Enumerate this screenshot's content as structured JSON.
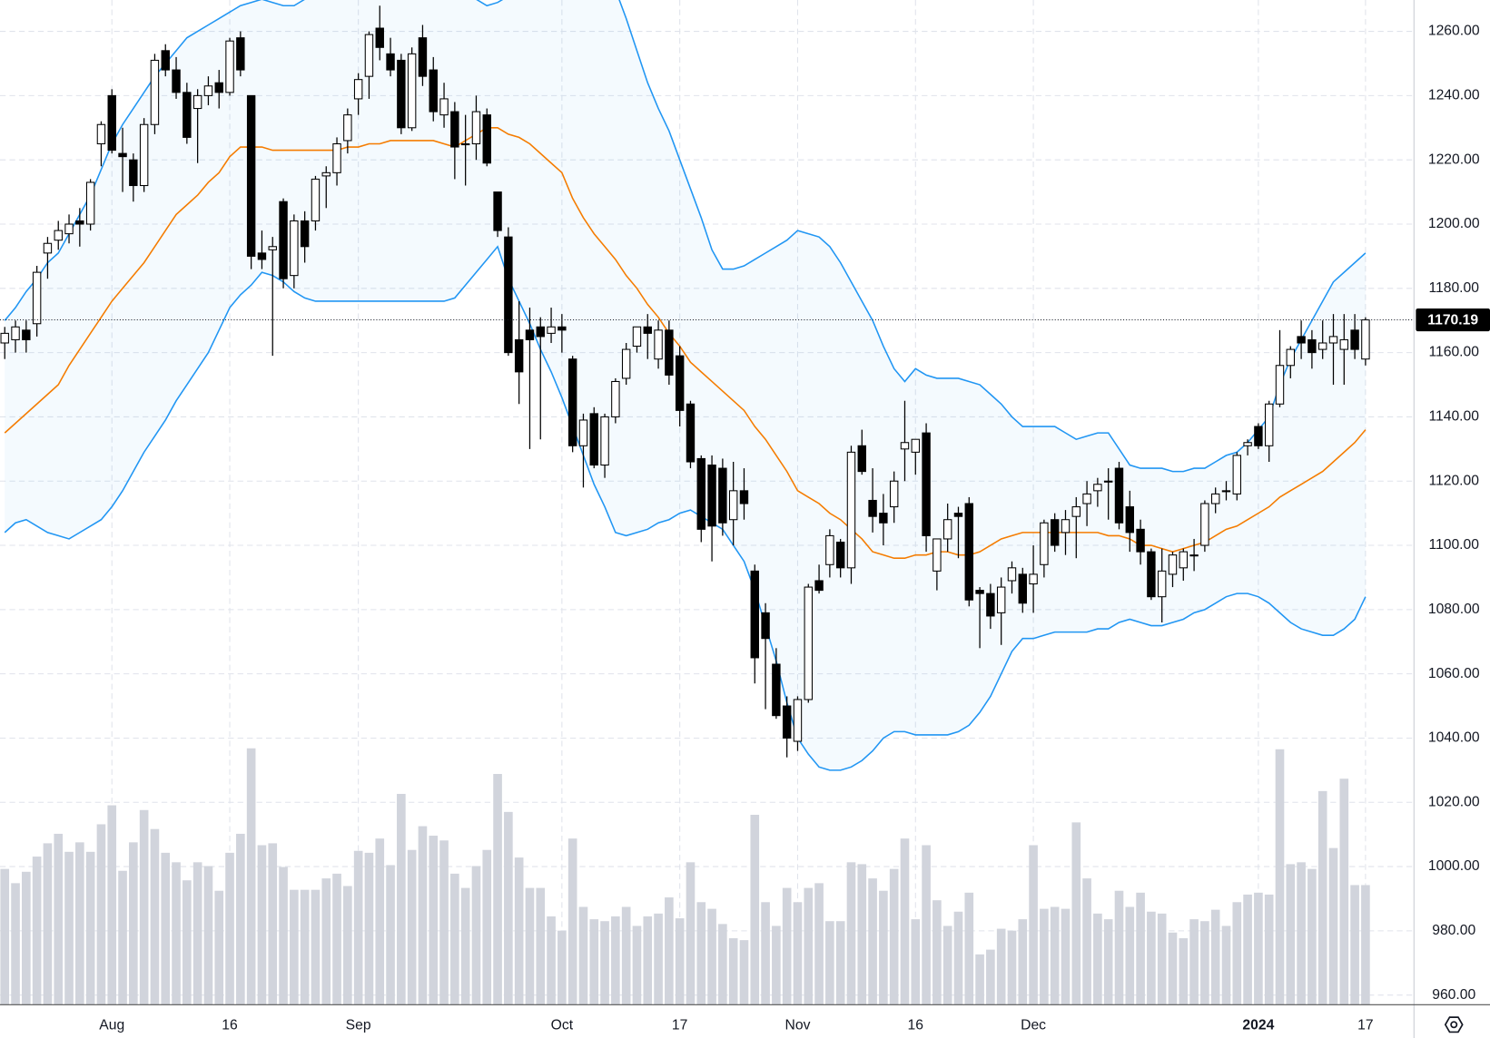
{
  "chart_data": {
    "type": "candlestick",
    "categories": [
      null,
      null,
      null,
      null,
      null,
      null,
      null,
      null,
      null,
      null,
      "Aug",
      null,
      null,
      null,
      null,
      null,
      null,
      null,
      null,
      null,
      null,
      "16",
      null,
      null,
      null,
      null,
      null,
      null,
      null,
      null,
      null,
      null,
      null,
      "Sep",
      null,
      null,
      null,
      null,
      null,
      null,
      null,
      null,
      null,
      null,
      null,
      null,
      null,
      null,
      null,
      null,
      null,
      null,
      "Oct",
      null,
      null,
      null,
      null,
      null,
      null,
      null,
      null,
      null,
      null,
      "17",
      null,
      null,
      null,
      null,
      null,
      null,
      null,
      null,
      null,
      null,
      "Nov",
      null,
      null,
      null,
      null,
      null,
      null,
      null,
      null,
      null,
      null,
      "16",
      null,
      null,
      null,
      null,
      null,
      null,
      null,
      null,
      null,
      null,
      "Dec",
      null,
      null,
      null,
      null,
      null,
      null,
      null,
      null,
      null,
      null,
      null,
      null,
      null,
      null,
      null,
      null,
      null,
      null,
      null,
      null,
      "2024",
      null,
      null,
      null,
      null,
      null,
      null,
      null,
      null,
      null,
      "17"
    ],
    "open": [
      1163,
      1164,
      1167,
      1169,
      1191,
      1195,
      1197,
      1201,
      1200,
      1225,
      1240,
      1222,
      1220,
      1212,
      1231,
      1254,
      1248,
      1241,
      1236,
      1240,
      1244,
      1241,
      1258,
      1240,
      1191,
      1192,
      1207,
      1184,
      1201,
      1201,
      1215,
      1216,
      1226,
      1239,
      1246,
      1261,
      1253,
      1251,
      1230,
      1258,
      1248,
      1234,
      1235,
      1225,
      1225,
      1234,
      1210,
      1196,
      1164,
      1167,
      1168,
      1166,
      1168,
      1158,
      1131,
      1141,
      1125,
      1140,
      1152,
      1162,
      1168,
      1158,
      1167,
      1159,
      1144,
      1127,
      1125,
      1124,
      1108,
      1117,
      1092,
      1079,
      1063,
      1050,
      1039,
      1052,
      1089,
      1094,
      1101,
      1093,
      1131,
      1114,
      1110,
      1112,
      1130,
      1129,
      1135,
      1092,
      1102,
      1110,
      1113,
      1086,
      1085,
      1079,
      1089,
      1091,
      1088,
      1094,
      1108,
      1104,
      1109,
      1113,
      1117,
      1120,
      1124,
      1112,
      1105,
      1098,
      1084,
      1091,
      1093,
      1097,
      1100,
      1113,
      1117,
      1116,
      1131,
      1137,
      1131,
      1144,
      1156,
      1165,
      1164,
      1161,
      1163,
      1161,
      1167,
      1158
    ],
    "high": [
      1168,
      1170,
      1170,
      1187,
      1196,
      1201,
      1203,
      1205,
      1214,
      1232,
      1242,
      1230,
      1222,
      1233,
      1253,
      1256,
      1252,
      1244,
      1242,
      1246,
      1248,
      1258,
      1260,
      1240,
      1198,
      1196,
      1208,
      1203,
      1204,
      1215,
      1218,
      1227,
      1236,
      1247,
      1260,
      1268,
      1258,
      1253,
      1255,
      1262,
      1252,
      1244,
      1238,
      1234,
      1240,
      1236,
      1210,
      1199,
      1176,
      1174,
      1171,
      1174,
      1172,
      1159,
      1141,
      1143,
      1141,
      1152,
      1163,
      1168,
      1172,
      1170,
      1170,
      1162,
      1145,
      1128,
      1128,
      1127,
      1126,
      1124,
      1094,
      1082,
      1068,
      1053,
      1053,
      1088,
      1094,
      1105,
      1102,
      1131,
      1136,
      1124,
      1116,
      1123,
      1145,
      1133,
      1138,
      1102,
      1113,
      1112,
      1115,
      1087,
      1088,
      1090,
      1095,
      1093,
      1100,
      1108,
      1110,
      1111,
      1115,
      1120,
      1121,
      1124,
      1126,
      1117,
      1108,
      1099,
      1099,
      1098,
      1099,
      1102,
      1114,
      1118,
      1120,
      1129,
      1133,
      1138,
      1145,
      1167,
      1162,
      1170,
      1167,
      1170,
      1172,
      1172,
      1172,
      1171
    ],
    "low": [
      1158,
      1160,
      1160,
      1165,
      1183,
      1192,
      1194,
      1193,
      1198,
      1218,
      1222,
      1210,
      1207,
      1210,
      1228,
      1246,
      1239,
      1225,
      1219,
      1237,
      1236,
      1240,
      1246,
      1186,
      1186,
      1159,
      1180,
      1180,
      1188,
      1198,
      1205,
      1212,
      1222,
      1234,
      1239,
      1251,
      1246,
      1228,
      1229,
      1243,
      1232,
      1230,
      1214,
      1212,
      1220,
      1218,
      1196,
      1159,
      1144,
      1130,
      1133,
      1163,
      1160,
      1129,
      1118,
      1124,
      1121,
      1138,
      1150,
      1160,
      1158,
      1155,
      1150,
      1137,
      1124,
      1101,
      1095,
      1103,
      1100,
      1108,
      1057,
      1049,
      1046,
      1034,
      1036,
      1051,
      1085,
      1090,
      1090,
      1088,
      1122,
      1104,
      1100,
      1107,
      1120,
      1122,
      1098,
      1086,
      1098,
      1096,
      1081,
      1068,
      1074,
      1069,
      1085,
      1079,
      1079,
      1090,
      1098,
      1097,
      1096,
      1106,
      1112,
      1108,
      1105,
      1098,
      1094,
      1083,
      1076,
      1087,
      1089,
      1092,
      1098,
      1110,
      1114,
      1114,
      1128,
      1130,
      1126,
      1143,
      1152,
      1158,
      1155,
      1158,
      1150,
      1150,
      1158,
      1156
    ],
    "close": [
      1166,
      1168,
      1164,
      1185,
      1194,
      1198,
      1200,
      1200,
      1213,
      1231,
      1223,
      1221,
      1212,
      1231,
      1251,
      1248,
      1241,
      1227,
      1240,
      1243,
      1241,
      1257,
      1248,
      1190,
      1189,
      1193,
      1183,
      1201,
      1193,
      1214,
      1216,
      1225,
      1234,
      1245,
      1259,
      1255,
      1248,
      1230,
      1253,
      1246,
      1235,
      1239,
      1224,
      1225,
      1235,
      1219,
      1198,
      1160,
      1154,
      1164,
      1165,
      1168,
      1167,
      1131,
      1139,
      1125,
      1140,
      1151,
      1161,
      1168,
      1166,
      1167,
      1153,
      1142,
      1126,
      1105,
      1106,
      1107,
      1117,
      1113,
      1065,
      1071,
      1047,
      1040,
      1052,
      1087,
      1086,
      1103,
      1093,
      1129,
      1123,
      1109,
      1107,
      1120,
      1132,
      1133,
      1103,
      1102,
      1108,
      1109,
      1083,
      1085,
      1078,
      1087,
      1093,
      1082,
      1091,
      1107,
      1100,
      1108,
      1112,
      1116,
      1119,
      1120,
      1107,
      1104,
      1098,
      1084,
      1092,
      1097,
      1098,
      1097,
      1113,
      1116,
      1117,
      1128,
      1132,
      1131,
      1144,
      1156,
      1161,
      1163,
      1160,
      1163,
      1165,
      1164,
      1161,
      1170.19
    ],
    "volume": [
      143,
      128,
      140,
      156,
      170,
      180,
      161,
      171,
      161,
      190,
      210,
      141,
      171,
      205,
      185,
      160,
      150,
      131,
      150,
      146,
      120,
      160,
      180,
      270,
      168,
      170,
      145,
      121,
      121,
      121,
      133,
      138,
      125,
      162,
      160,
      175,
      147,
      222,
      163,
      188,
      178,
      173,
      138,
      123,
      146,
      163,
      243,
      203,
      155,
      123,
      123,
      93,
      78,
      175,
      103,
      90,
      88,
      93,
      103,
      83,
      93,
      96,
      113,
      91,
      150,
      108,
      101,
      85,
      70,
      68,
      200,
      108,
      83,
      123,
      108,
      123,
      128,
      88,
      88,
      150,
      148,
      133,
      120,
      143,
      175,
      90,
      168,
      110,
      83,
      98,
      118,
      53,
      58,
      80,
      78,
      90,
      168,
      101,
      103,
      101,
      192,
      133,
      96,
      90,
      120,
      103,
      118,
      98,
      96,
      76,
      70,
      90,
      88,
      100,
      83,
      108,
      116,
      118,
      116,
      269,
      148,
      150,
      143,
      225,
      165,
      238,
      126,
      126
    ],
    "volume_lim": [
      0,
      1058
    ],
    "volume_color": "#d1d4dc",
    "up_color": "#ffffff",
    "down_color": "#000000",
    "band_fill": "#2196f3",
    "overlays": [
      {
        "color": "#2196f3",
        "values": [
          1170,
          1174,
          1179,
          1183,
          1188,
          1191,
          1197,
          1203,
          1209,
          1217,
          1225,
          1231,
          1236,
          1241,
          1246,
          1250,
          1254,
          1258,
          1260,
          1262,
          1264,
          1266,
          1268,
          1269,
          1270,
          1269,
          1268,
          1268,
          1270,
          1271,
          1272,
          1273,
          1274,
          1275,
          1276,
          1278,
          1278,
          1277,
          1277,
          1276,
          1275,
          1274,
          1273,
          1271,
          1270,
          1268,
          1269,
          1271,
          1273,
          1275,
          1277,
          1279,
          1281,
          1284,
          1285,
          1282,
          1278,
          1273,
          1264,
          1254,
          1244,
          1236,
          1229,
          1220,
          1211,
          1202,
          1192,
          1186,
          1186,
          1187,
          1189,
          1191,
          1193,
          1195,
          1198,
          1197,
          1196,
          1193,
          1188,
          1182,
          1176,
          1170,
          1162,
          1155,
          1151,
          1155,
          1153,
          1152,
          1152,
          1152,
          1151,
          1150,
          1147,
          1144,
          1140,
          1137,
          1137,
          1137,
          1137,
          1135,
          1133,
          1134,
          1135,
          1135,
          1130,
          1125,
          1124,
          1124,
          1124,
          1123,
          1123,
          1124,
          1124,
          1126,
          1128,
          1129,
          1132,
          1136,
          1140,
          1150,
          1158,
          1164,
          1170,
          1176,
          1182,
          1185,
          1188,
          1191
        ]
      },
      {
        "color": "#f57c00",
        "values": [
          1135,
          1138,
          1141,
          1144,
          1147,
          1150,
          1156,
          1161,
          1166,
          1171,
          1176,
          1180,
          1184,
          1188,
          1193,
          1198,
          1203,
          1206,
          1209,
          1213,
          1216,
          1221,
          1224,
          1224,
          1224,
          1223,
          1223,
          1223,
          1223,
          1223,
          1223,
          1223,
          1224,
          1224,
          1225,
          1225,
          1226,
          1226,
          1226,
          1226,
          1226,
          1225,
          1224,
          1226,
          1228,
          1230,
          1230,
          1228,
          1227,
          1225,
          1222,
          1219,
          1216,
          1208,
          1202,
          1197,
          1193,
          1189,
          1184,
          1180,
          1175,
          1171,
          1166,
          1162,
          1157,
          1154,
          1151,
          1148,
          1145,
          1142,
          1137,
          1133,
          1128,
          1123,
          1117,
          1115,
          1113,
          1110,
          1108,
          1105,
          1102,
          1098,
          1097,
          1096,
          1096,
          1097,
          1097,
          1098,
          1098,
          1097,
          1097,
          1098,
          1100,
          1102,
          1103,
          1104,
          1104,
          1104,
          1104,
          1104,
          1104,
          1104,
          1104,
          1103,
          1103,
          1102,
          1100,
          1100,
          1099,
          1098,
          1099,
          1100,
          1101,
          1103,
          1105,
          1106,
          1108,
          1110,
          1112,
          1115,
          1117,
          1119,
          1121,
          1123,
          1126,
          1129,
          1132,
          1136
        ]
      },
      {
        "color": "#2196f3",
        "values": [
          1104,
          1107,
          1108,
          1106,
          1104,
          1103,
          1102,
          1104,
          1106,
          1108,
          1112,
          1117,
          1123,
          1129,
          1134,
          1139,
          1145,
          1150,
          1155,
          1160,
          1167,
          1174,
          1178,
          1181,
          1185,
          1184,
          1182,
          1179,
          1177,
          1176,
          1176,
          1176,
          1176,
          1176,
          1176,
          1176,
          1176,
          1176,
          1176,
          1176,
          1176,
          1176,
          1177,
          1181,
          1185,
          1189,
          1193,
          1183,
          1176,
          1169,
          1161,
          1154,
          1146,
          1137,
          1128,
          1119,
          1112,
          1104,
          1103,
          1104,
          1105,
          1107,
          1108,
          1110,
          1111,
          1109,
          1107,
          1105,
          1100,
          1095,
          1086,
          1075,
          1064,
          1051,
          1040,
          1035,
          1031,
          1030,
          1030,
          1031,
          1033,
          1036,
          1040,
          1042,
          1042,
          1041,
          1041,
          1041,
          1041,
          1042,
          1044,
          1048,
          1053,
          1060,
          1067,
          1071,
          1071,
          1072,
          1073,
          1073,
          1073,
          1073,
          1074,
          1074,
          1076,
          1077,
          1076,
          1075,
          1075,
          1076,
          1077,
          1079,
          1080,
          1082,
          1084,
          1085,
          1085,
          1084,
          1082,
          1079,
          1076,
          1074,
          1073,
          1072,
          1072,
          1074,
          1077,
          1084
        ]
      }
    ],
    "ylim": [
      957,
      1269.75
    ],
    "yticks": [
      {
        "value": 960,
        "label": "960.00"
      },
      {
        "value": 980,
        "label": "980.00"
      },
      {
        "value": 1000,
        "label": "1000.00"
      },
      {
        "value": 1020,
        "label": "1020.00"
      },
      {
        "value": 1040,
        "label": "1040.00"
      },
      {
        "value": 1060,
        "label": "1060.00"
      },
      {
        "value": 1080,
        "label": "1080.00"
      },
      {
        "value": 1100,
        "label": "1100.00"
      },
      {
        "value": 1120,
        "label": "1120.00"
      },
      {
        "value": 1140,
        "label": "1140.00"
      },
      {
        "value": 1160,
        "label": "1160.00"
      },
      {
        "value": 1180,
        "label": "1180.00"
      },
      {
        "value": 1200,
        "label": "1200.00"
      },
      {
        "value": 1220,
        "label": "1220.00"
      },
      {
        "value": 1240,
        "label": "1240.00"
      },
      {
        "value": 1260,
        "label": "1260.00"
      }
    ],
    "grid": true,
    "last_price_line": true
  }
}
